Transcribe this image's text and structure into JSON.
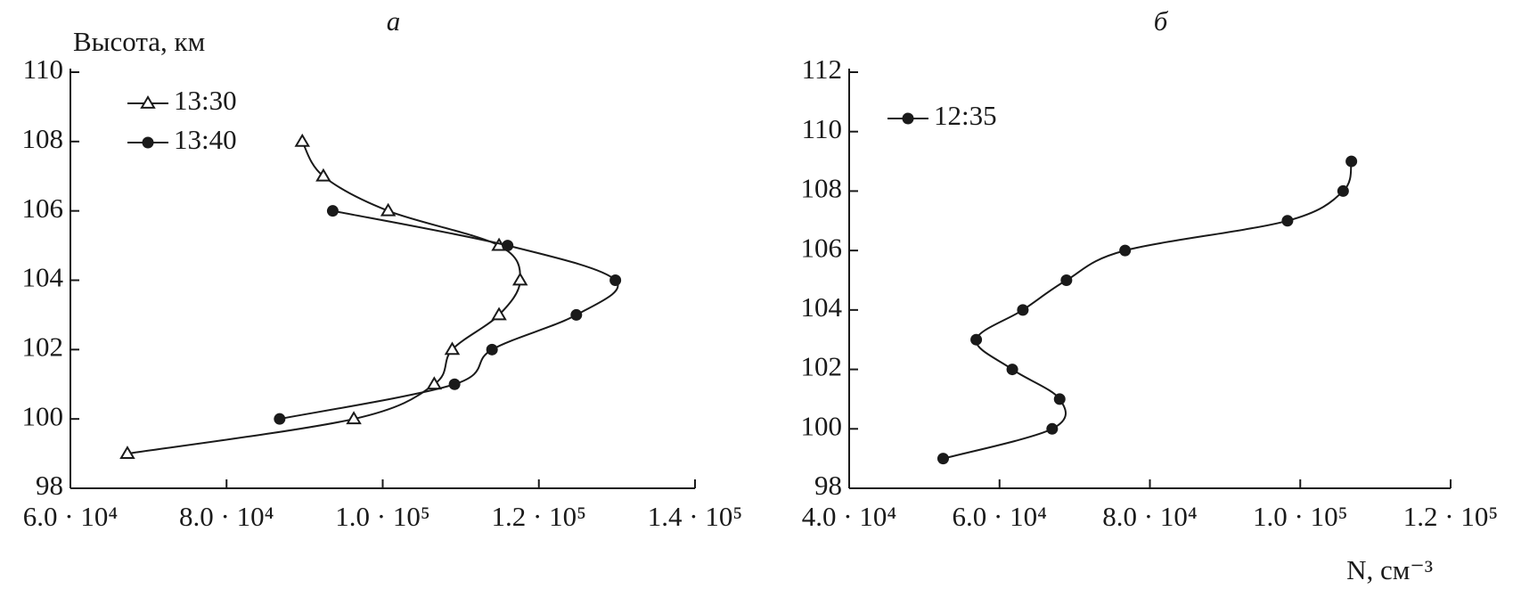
{
  "chart_data": [
    {
      "type": "line",
      "title": "а",
      "y_label": "Высота, км",
      "xlim": [
        60000,
        140000
      ],
      "xticks": [
        {
          "value": 60000,
          "label": "6.0 · 10⁴"
        },
        {
          "value": 80000,
          "label": "8.0 · 10⁴"
        },
        {
          "value": 100000,
          "label": "1.0 · 10⁵"
        },
        {
          "value": 120000,
          "label": "1.2 · 10⁵"
        },
        {
          "value": 140000,
          "label": "1.4 · 10⁵"
        }
      ],
      "ylim": [
        98,
        110
      ],
      "yticks": [
        98,
        100,
        102,
        104,
        106,
        108,
        110
      ],
      "series": [
        {
          "name": "13:30",
          "marker": "triangle",
          "color": "#1a1a1a",
          "x": [
            67300,
            96300,
            106600,
            108900,
            114900,
            117600,
            114900,
            100700,
            92400,
            89700
          ],
          "values": [
            99,
            100,
            101,
            102,
            103,
            104,
            105,
            106,
            107,
            108
          ]
        },
        {
          "name": "13:40",
          "marker": "circle",
          "color": "#1a1a1a",
          "x": [
            86800,
            109200,
            114000,
            124800,
            129800,
            116000,
            93600
          ],
          "values": [
            100,
            101,
            102,
            103,
            104,
            105,
            106
          ]
        }
      ]
    },
    {
      "type": "line",
      "title": "б",
      "x_label": "N, см⁻³",
      "xlim": [
        40000,
        120000
      ],
      "xticks": [
        {
          "value": 40000,
          "label": "4.0 · 10⁴"
        },
        {
          "value": 60000,
          "label": "6.0 · 10⁴"
        },
        {
          "value": 80000,
          "label": "8.0 · 10⁴"
        },
        {
          "value": 100000,
          "label": "1.0 · 10⁵"
        },
        {
          "value": 120000,
          "label": "1.2 · 10⁵"
        }
      ],
      "ylim": [
        98,
        112
      ],
      "yticks": [
        98,
        100,
        102,
        104,
        106,
        108,
        110,
        112
      ],
      "series": [
        {
          "name": "12:35",
          "marker": "circle",
          "color": "#1a1a1a",
          "x": [
            52500,
            67000,
            68000,
            61700,
            56900,
            63100,
            68900,
            76700,
            98300,
            105700,
            106800
          ],
          "values": [
            99,
            100,
            101,
            102,
            103,
            104,
            105,
            106,
            107,
            108,
            109
          ]
        }
      ]
    }
  ]
}
